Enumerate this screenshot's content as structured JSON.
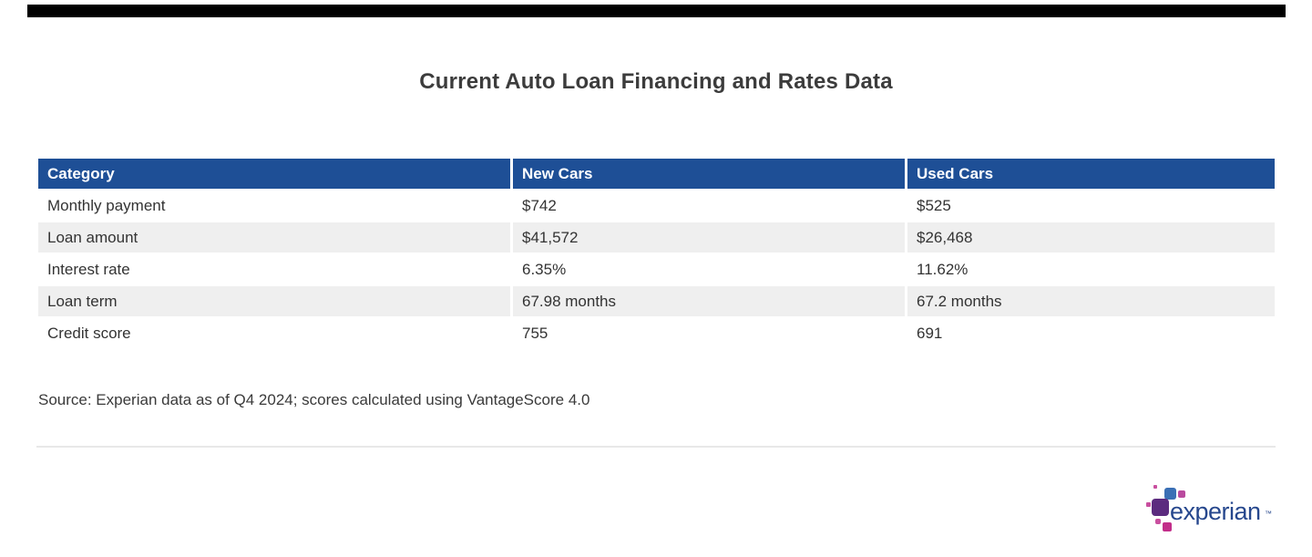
{
  "page": {
    "title": "Current Auto Loan Financing and Rates Data",
    "source_note": "Source: Experian data as of Q4 2024; scores calculated using VantageScore 4.0"
  },
  "table": {
    "columns": [
      "Category",
      "New Cars",
      "Used Cars"
    ],
    "rows": [
      {
        "category": "Monthly payment",
        "new_cars": "$742",
        "used_cars": "$525"
      },
      {
        "category": "Loan amount",
        "new_cars": "$41,572",
        "used_cars": "$26,468"
      },
      {
        "category": "Interest rate",
        "new_cars": "6.35%",
        "used_cars": "11.62%"
      },
      {
        "category": "Loan term",
        "new_cars": "67.98 months",
        "used_cars": "67.2 months"
      },
      {
        "category": "Credit score",
        "new_cars": "755",
        "used_cars": "691"
      }
    ]
  },
  "branding": {
    "logo_text": "experian",
    "trademark": "™",
    "colors": {
      "header_blue": "#1e4f96",
      "stripe_gray": "#efefef",
      "logo_dark_blue": "#26478d",
      "logo_light_blue": "#3a6fb5",
      "logo_purple": "#5c2b7f",
      "logo_magenta": "#c22e8a"
    }
  },
  "chart_data": {
    "type": "table",
    "title": "Current Auto Loan Financing and Rates Data",
    "columns": [
      "Category",
      "New Cars",
      "Used Cars"
    ],
    "rows": [
      [
        "Monthly payment",
        "$742",
        "$525"
      ],
      [
        "Loan amount",
        "$41,572",
        "$26,468"
      ],
      [
        "Interest rate",
        "6.35%",
        "11.62%"
      ],
      [
        "Loan term",
        "67.98 months",
        "67.2 months"
      ],
      [
        "Credit score",
        "755",
        "691"
      ]
    ],
    "source": "Source: Experian data as of Q4 2024; scores calculated using VantageScore 4.0"
  }
}
